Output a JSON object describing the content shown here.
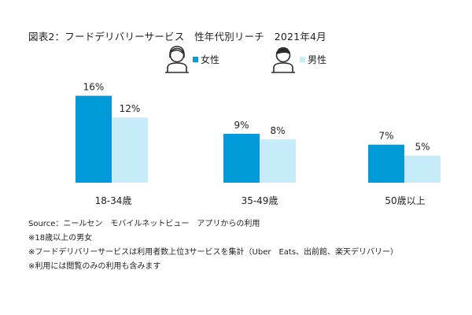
{
  "title": "図表2：フードデリバリーサービス　性年代別リーチ　2021年4月",
  "colors": {
    "female": "#009ad9",
    "male": "#c6ecf9",
    "icon": "#2b2b2b"
  },
  "legend_icons": [
    "female-person-icon",
    "male-person-icon"
  ],
  "chart_data": {
    "type": "bar",
    "categories": [
      "18-34歳",
      "35-49歳",
      "50歳以上"
    ],
    "series": [
      {
        "name": "女性",
        "values": [
          16,
          9,
          7
        ],
        "labels": [
          "16%",
          "9%",
          "7%"
        ]
      },
      {
        "name": "男性",
        "values": [
          12,
          8,
          5
        ],
        "labels": [
          "12%",
          "8%",
          "5%"
        ]
      }
    ],
    "unit": "%",
    "legend": "top-right",
    "grid": false
  },
  "notes": [
    "Source：ニールセン　モバイルネットビュー　アプリからの利用",
    "※18歳以上の男女",
    "※フードデリバリーサービスは利用者数上位3サービスを集計（Uber　Eats、出前館、楽天デリバリー）",
    "※利用には閲覧のみの利用も含みます"
  ]
}
